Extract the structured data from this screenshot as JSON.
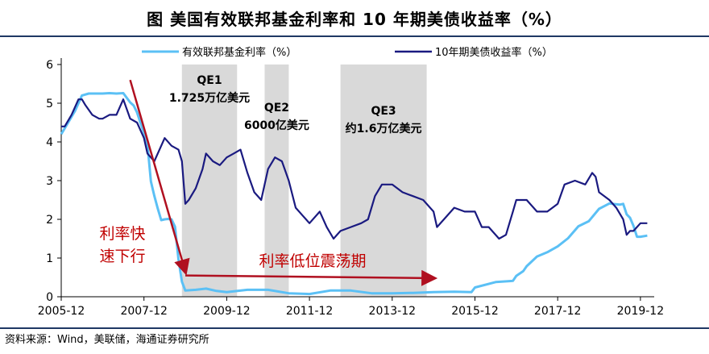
{
  "header": {
    "title": "图  美国有效联邦基金利率和 10 年期美债收益率（%）"
  },
  "footer": {
    "source": "资料来源：Wind，美联储，海通证券研究所"
  },
  "colors": {
    "ffr": "#5bc0f5",
    "ust10y": "#1a1a80",
    "arrow": "#b01020",
    "qe_band": "#d9d9d9"
  },
  "chart_data": {
    "type": "line",
    "title": "美国有效联邦基金利率和 10 年期美债收益率（%）",
    "x_ticks": [
      "2005-12",
      "2007-12",
      "2009-12",
      "2011-12",
      "2013-12",
      "2015-12",
      "2017-12",
      "2019-12"
    ],
    "y_ticks": [
      "0",
      "1",
      "2",
      "3",
      "4",
      "5",
      "6"
    ],
    "xlim": [
      "2005-12",
      "2020-04"
    ],
    "ylim": [
      0,
      6
    ],
    "legend": {
      "placement": "top",
      "entries": [
        "有效联邦基金利率（%）",
        "10年期美债收益率（%）"
      ]
    },
    "series": [
      {
        "name": "有效联邦基金利率（%）",
        "points": [
          [
            "2005-12",
            4.2
          ],
          [
            "2006-02",
            4.5
          ],
          [
            "2006-04",
            4.8
          ],
          [
            "2006-06",
            5.2
          ],
          [
            "2006-08",
            5.25
          ],
          [
            "2006-10",
            5.25
          ],
          [
            "2006-12",
            5.25
          ],
          [
            "2007-02",
            5.26
          ],
          [
            "2007-04",
            5.25
          ],
          [
            "2007-06",
            5.26
          ],
          [
            "2007-08",
            5.02
          ],
          [
            "2007-09",
            4.94
          ],
          [
            "2007-10",
            4.76
          ],
          [
            "2007-11",
            4.49
          ],
          [
            "2007-12",
            4.24
          ],
          [
            "2008-01",
            3.94
          ],
          [
            "2008-02",
            2.98
          ],
          [
            "2008-03",
            2.61
          ],
          [
            "2008-04",
            2.28
          ],
          [
            "2008-05",
            1.98
          ],
          [
            "2008-06",
            2.0
          ],
          [
            "2008-07",
            2.01
          ],
          [
            "2008-08",
            2.0
          ],
          [
            "2008-09",
            1.81
          ],
          [
            "2008-10",
            0.97
          ],
          [
            "2008-11",
            0.39
          ],
          [
            "2008-12",
            0.16
          ],
          [
            "2009-03",
            0.18
          ],
          [
            "2009-06",
            0.21
          ],
          [
            "2009-09",
            0.15
          ],
          [
            "2009-12",
            0.12
          ],
          [
            "2010-06",
            0.18
          ],
          [
            "2010-12",
            0.18
          ],
          [
            "2011-06",
            0.09
          ],
          [
            "2011-12",
            0.07
          ],
          [
            "2012-06",
            0.16
          ],
          [
            "2012-12",
            0.16
          ],
          [
            "2013-06",
            0.09
          ],
          [
            "2013-12",
            0.09
          ],
          [
            "2014-06",
            0.1
          ],
          [
            "2014-12",
            0.12
          ],
          [
            "2015-06",
            0.13
          ],
          [
            "2015-11",
            0.12
          ],
          [
            "2015-12",
            0.24
          ],
          [
            "2016-06",
            0.38
          ],
          [
            "2016-11",
            0.41
          ],
          [
            "2016-12",
            0.54
          ],
          [
            "2017-02",
            0.66
          ],
          [
            "2017-03",
            0.79
          ],
          [
            "2017-06",
            1.04
          ],
          [
            "2017-09",
            1.15
          ],
          [
            "2017-12",
            1.3
          ],
          [
            "2018-03",
            1.51
          ],
          [
            "2018-06",
            1.82
          ],
          [
            "2018-09",
            1.95
          ],
          [
            "2018-12",
            2.27
          ],
          [
            "2019-03",
            2.41
          ],
          [
            "2019-06",
            2.38
          ],
          [
            "2019-07",
            2.4
          ],
          [
            "2019-08",
            2.13
          ],
          [
            "2019-09",
            2.04
          ],
          [
            "2019-10",
            1.83
          ],
          [
            "2019-11",
            1.55
          ],
          [
            "2019-12",
            1.55
          ],
          [
            "2020-02",
            1.58
          ]
        ]
      },
      {
        "name": "10年期美债收益率（%）",
        "points": [
          [
            "2005-12",
            4.4
          ],
          [
            "2006-01",
            4.4
          ],
          [
            "2006-03",
            4.7
          ],
          [
            "2006-05",
            5.1
          ],
          [
            "2006-06",
            5.1
          ],
          [
            "2006-07",
            4.95
          ],
          [
            "2006-09",
            4.7
          ],
          [
            "2006-11",
            4.6
          ],
          [
            "2006-12",
            4.6
          ],
          [
            "2007-02",
            4.7
          ],
          [
            "2007-04",
            4.7
          ],
          [
            "2007-06",
            5.1
          ],
          [
            "2007-08",
            4.6
          ],
          [
            "2007-10",
            4.5
          ],
          [
            "2007-12",
            4.1
          ],
          [
            "2008-01",
            3.7
          ],
          [
            "2008-03",
            3.5
          ],
          [
            "2008-05",
            3.9
          ],
          [
            "2008-06",
            4.1
          ],
          [
            "2008-08",
            3.9
          ],
          [
            "2008-10",
            3.8
          ],
          [
            "2008-11",
            3.5
          ],
          [
            "2008-12",
            2.4
          ],
          [
            "2009-01",
            2.5
          ],
          [
            "2009-03",
            2.8
          ],
          [
            "2009-05",
            3.3
          ],
          [
            "2009-06",
            3.7
          ],
          [
            "2009-08",
            3.5
          ],
          [
            "2009-10",
            3.4
          ],
          [
            "2009-12",
            3.6
          ],
          [
            "2010-02",
            3.7
          ],
          [
            "2010-04",
            3.8
          ],
          [
            "2010-06",
            3.2
          ],
          [
            "2010-08",
            2.7
          ],
          [
            "2010-10",
            2.5
          ],
          [
            "2010-12",
            3.3
          ],
          [
            "2011-02",
            3.6
          ],
          [
            "2011-04",
            3.5
          ],
          [
            "2011-06",
            3.0
          ],
          [
            "2011-08",
            2.3
          ],
          [
            "2011-10",
            2.1
          ],
          [
            "2011-12",
            1.9
          ],
          [
            "2012-03",
            2.2
          ],
          [
            "2012-05",
            1.8
          ],
          [
            "2012-07",
            1.5
          ],
          [
            "2012-09",
            1.7
          ],
          [
            "2012-12",
            1.8
          ],
          [
            "2013-03",
            1.9
          ],
          [
            "2013-05",
            2.0
          ],
          [
            "2013-07",
            2.6
          ],
          [
            "2013-09",
            2.9
          ],
          [
            "2013-12",
            2.9
          ],
          [
            "2014-03",
            2.7
          ],
          [
            "2014-06",
            2.6
          ],
          [
            "2014-09",
            2.5
          ],
          [
            "2014-12",
            2.2
          ],
          [
            "2015-01",
            1.8
          ],
          [
            "2015-03",
            2.0
          ],
          [
            "2015-06",
            2.3
          ],
          [
            "2015-09",
            2.2
          ],
          [
            "2015-12",
            2.2
          ],
          [
            "2016-02",
            1.8
          ],
          [
            "2016-04",
            1.8
          ],
          [
            "2016-07",
            1.5
          ],
          [
            "2016-09",
            1.6
          ],
          [
            "2016-11",
            2.2
          ],
          [
            "2016-12",
            2.5
          ],
          [
            "2017-03",
            2.5
          ],
          [
            "2017-06",
            2.2
          ],
          [
            "2017-09",
            2.2
          ],
          [
            "2017-12",
            2.4
          ],
          [
            "2018-02",
            2.9
          ],
          [
            "2018-05",
            3.0
          ],
          [
            "2018-08",
            2.9
          ],
          [
            "2018-10",
            3.2
          ],
          [
            "2018-11",
            3.1
          ],
          [
            "2018-12",
            2.7
          ],
          [
            "2019-03",
            2.5
          ],
          [
            "2019-05",
            2.3
          ],
          [
            "2019-07",
            2.0
          ],
          [
            "2019-08",
            1.6
          ],
          [
            "2019-09",
            1.7
          ],
          [
            "2019-10",
            1.7
          ],
          [
            "2019-11",
            1.8
          ],
          [
            "2019-12",
            1.9
          ],
          [
            "2020-02",
            1.9
          ]
        ]
      }
    ],
    "qe_bands": [
      {
        "label": "QE1",
        "detail": "1.725万亿美元",
        "start": "2008-11",
        "end": "2010-03"
      },
      {
        "label": "QE2",
        "detail": "6000亿美元",
        "start": "2010-11",
        "end": "2011-06"
      },
      {
        "label": "QE3",
        "detail": "约1.6万亿美元",
        "start": "2012-09",
        "end": "2014-10"
      }
    ],
    "annotations": [
      {
        "text_lines": [
          "利率快",
          "速下行"
        ],
        "arrow_from": [
          "2007-08",
          5.6
        ],
        "arrow_to": [
          "2008-12",
          0.65
        ]
      },
      {
        "text_lines": [
          "利率低位震荡期"
        ],
        "arrow_from": [
          "2008-12",
          0.55
        ],
        "arrow_to": [
          "2014-12",
          0.48
        ]
      }
    ]
  }
}
